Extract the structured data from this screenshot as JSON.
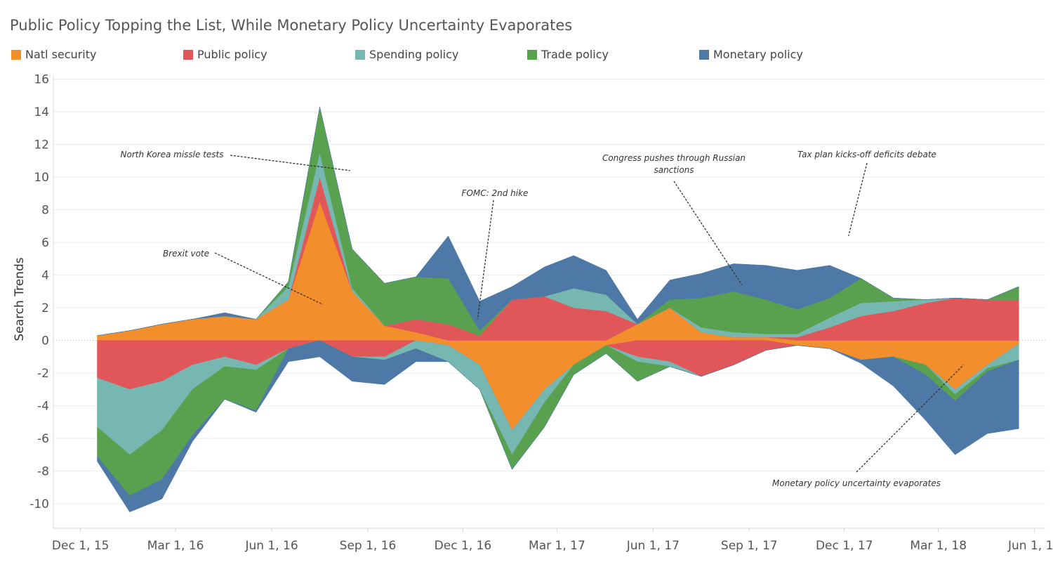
{
  "chart_data": {
    "type": "area",
    "title": "Public Policy Topping the List, While Monetary Policy Uncertainty Evaporates",
    "ylabel": "Search Trends",
    "xlabel": "",
    "ylim": [
      -11.5,
      16.2
    ],
    "yticks": [
      16,
      14,
      12,
      10,
      8,
      6,
      4,
      2,
      0,
      -2,
      -4,
      -6,
      -8,
      -10
    ],
    "x_ticks": [
      {
        "date": "2015-12-01",
        "label": "Dec 1, 15"
      },
      {
        "date": "2016-03-01",
        "label": "Mar 1, 16"
      },
      {
        "date": "2016-06-01",
        "label": "Jun 1, 16"
      },
      {
        "date": "2016-09-01",
        "label": "Sep 1, 16"
      },
      {
        "date": "2016-12-01",
        "label": "Dec 1, 16"
      },
      {
        "date": "2017-03-01",
        "label": "Mar 1, 17"
      },
      {
        "date": "2017-06-01",
        "label": "Jun 1, 17"
      },
      {
        "date": "2017-09-01",
        "label": "Sep 1, 17"
      },
      {
        "date": "2017-12-01",
        "label": "Dec 1, 17"
      },
      {
        "date": "2018-03-01",
        "label": "Mar 1, 18"
      },
      {
        "date": "2018-06-01",
        "label": "Jun 1, 18"
      }
    ],
    "x": [
      "2015-12-17",
      "2016-01-17",
      "2016-02-17",
      "2016-03-17",
      "2016-04-17",
      "2016-05-17",
      "2016-06-17",
      "2016-07-17",
      "2016-08-17",
      "2016-09-17",
      "2016-10-17",
      "2016-11-17",
      "2016-12-17",
      "2017-01-17",
      "2017-02-17",
      "2017-03-17",
      "2017-04-17",
      "2017-05-17",
      "2017-06-17",
      "2017-07-17",
      "2017-08-17",
      "2017-09-17",
      "2017-10-17",
      "2017-11-17",
      "2017-12-17",
      "2018-01-17",
      "2018-02-17",
      "2018-03-17",
      "2018-04-17",
      "2018-05-17"
    ],
    "series": [
      {
        "name": "Natl security",
        "color": "#f28e2b",
        "values": [
          0.3,
          0.6,
          1.0,
          1.3,
          1.5,
          1.3,
          2.5,
          8.5,
          3.0,
          0.9,
          0.5,
          -0.3,
          -1.5,
          -5.5,
          -3.0,
          -1.5,
          -0.3,
          1.0,
          2.0,
          0.5,
          0.2,
          0.2,
          -0.3,
          -0.5,
          -1.2,
          -1.0,
          -1.5,
          -3.0,
          -1.5,
          -0.2
        ]
      },
      {
        "name": "Public policy",
        "color": "#e15759",
        "values": [
          -2.3,
          -3.0,
          -2.5,
          -1.5,
          -1.0,
          -1.5,
          -0.5,
          1.5,
          -1.0,
          -1.0,
          0.8,
          1.0,
          0.3,
          2.5,
          2.7,
          2.0,
          1.8,
          -1.0,
          -1.3,
          -2.2,
          -1.5,
          -0.6,
          0.2,
          0.8,
          1.5,
          1.8,
          2.3,
          2.6,
          2.5,
          2.5
        ]
      },
      {
        "name": "Spending policy",
        "color": "#76b7b2",
        "values": [
          -3.0,
          -4.0,
          -3.0,
          -1.5,
          -0.6,
          -0.3,
          0.8,
          1.5,
          0.2,
          -0.2,
          -0.5,
          -1.0,
          -1.5,
          -1.5,
          -0.8,
          1.2,
          1.0,
          -0.3,
          -0.3,
          0.3,
          0.3,
          0.2,
          0.2,
          0.6,
          0.8,
          0.6,
          0.2,
          -0.3,
          -0.2,
          -1.0
        ]
      },
      {
        "name": "Trade policy",
        "color": "#59a14f",
        "values": [
          -1.8,
          -2.5,
          -3.0,
          -2.8,
          -2.0,
          -2.5,
          0.3,
          2.8,
          2.4,
          2.6,
          2.6,
          2.8,
          0.3,
          -0.9,
          -1.5,
          -0.6,
          -0.5,
          -1.2,
          0.5,
          1.8,
          2.5,
          2.1,
          1.5,
          1.2,
          1.5,
          0.2,
          -0.6,
          -0.4,
          -0.2,
          0.8
        ]
      },
      {
        "name": "Monetary policy",
        "color": "#4e79a7",
        "values": [
          -0.3,
          -1.0,
          -1.2,
          -0.4,
          0.2,
          -0.1,
          -0.8,
          -1.0,
          -1.5,
          -1.5,
          -0.8,
          2.6,
          1.8,
          0.8,
          1.8,
          2.0,
          1.5,
          0.3,
          1.2,
          1.5,
          1.7,
          2.1,
          2.4,
          2.0,
          -0.2,
          -1.8,
          -2.8,
          -3.3,
          -3.8,
          -4.2
        ]
      }
    ],
    "annotations": [
      {
        "text": "North Korea missle tests",
        "date": "2016-08-15",
        "value": 10.4
      },
      {
        "text": "Brexit vote",
        "date": "2016-07-20",
        "value": 2.2
      },
      {
        "text": "FOMC: 2nd hike",
        "date": "2016-12-15",
        "value": 1.3
      },
      {
        "text": "Congress pushes through Russian sanctions",
        "date": "2017-08-25",
        "value": 3.4
      },
      {
        "text": "Tax plan kicks-off deficits debate",
        "date": "2017-12-05",
        "value": 6.4
      },
      {
        "text": "Monetary policy uncertainty evaporates",
        "date": "2018-03-25",
        "value": -1.5
      }
    ],
    "grid": true,
    "legend": "top"
  }
}
